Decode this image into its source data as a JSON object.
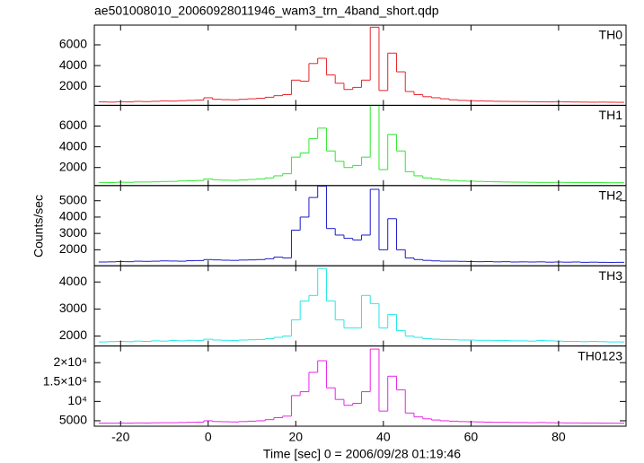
{
  "title": "ae501008010_20060928011946_wam3_trn_4band_short.qdp",
  "ylabel": "Counts/sec",
  "xlabel": "Time [sec] 0 = 2006/09/28 01:19:46",
  "chart_data": [
    {
      "type": "line",
      "label": "TH0",
      "color": "#e8242a",
      "x": [
        -24,
        -22,
        -20,
        -18,
        -16,
        -14,
        -12,
        -10,
        -8,
        -6,
        -4,
        -2,
        0,
        2,
        4,
        6,
        8,
        10,
        12,
        14,
        16,
        18,
        20,
        22,
        24,
        26,
        28,
        30,
        32,
        34,
        36,
        38,
        40,
        42,
        44,
        46,
        48,
        50,
        52,
        54,
        56,
        58,
        60,
        62,
        64,
        66,
        68,
        70,
        72,
        74,
        76,
        78,
        80,
        82,
        84,
        86,
        88,
        90,
        92,
        94
      ],
      "values": [
        500,
        480,
        520,
        500,
        550,
        530,
        560,
        600,
        580,
        620,
        650,
        680,
        900,
        750,
        720,
        700,
        750,
        800,
        850,
        950,
        1100,
        1200,
        2600,
        2500,
        4200,
        4700,
        3100,
        2300,
        1700,
        1900,
        2600,
        7700,
        1600,
        5200,
        3400,
        1500,
        1200,
        1000,
        900,
        800,
        700,
        650,
        620,
        600,
        580,
        560,
        550,
        540,
        530,
        520,
        510,
        500,
        520,
        500,
        490,
        480,
        470,
        480,
        470,
        460
      ],
      "xlim": [
        -26,
        95.4
      ],
      "xticks": [
        -20,
        0,
        20,
        40,
        60,
        80
      ],
      "ylim": [
        170,
        7900
      ],
      "yticks": [
        2000,
        4000,
        6000
      ]
    },
    {
      "type": "line",
      "label": "TH1",
      "color": "#2ee82e",
      "x": [
        -24,
        -22,
        -20,
        -18,
        -16,
        -14,
        -12,
        -10,
        -8,
        -6,
        -4,
        -2,
        0,
        2,
        4,
        6,
        8,
        10,
        12,
        14,
        16,
        18,
        20,
        22,
        24,
        26,
        28,
        30,
        32,
        34,
        36,
        38,
        40,
        42,
        44,
        46,
        48,
        50,
        52,
        54,
        56,
        58,
        60,
        62,
        64,
        66,
        68,
        70,
        72,
        74,
        76,
        78,
        80,
        82,
        84,
        86,
        88,
        90,
        92,
        94
      ],
      "values": [
        560,
        550,
        580,
        570,
        600,
        600,
        620,
        650,
        660,
        700,
        720,
        750,
        900,
        820,
        780,
        760,
        800,
        850,
        900,
        1000,
        1200,
        1400,
        3000,
        3400,
        4800,
        5800,
        3600,
        2600,
        2000,
        2200,
        3000,
        8000,
        1800,
        5200,
        3600,
        1600,
        1200,
        1000,
        900,
        800,
        750,
        700,
        680,
        660,
        640,
        620,
        600,
        590,
        580,
        570,
        560,
        560,
        570,
        560,
        550,
        540,
        550,
        540,
        530,
        530
      ],
      "xlim": [
        -26,
        95.4
      ],
      "xticks": [
        -20,
        0,
        20,
        40,
        60,
        80
      ],
      "ylim": [
        260,
        8000
      ],
      "yticks": [
        2000,
        4000,
        6000
      ]
    },
    {
      "type": "line",
      "label": "TH2",
      "color": "#1c1cc8",
      "x": [
        -24,
        -22,
        -20,
        -18,
        -16,
        -14,
        -12,
        -10,
        -8,
        -6,
        -4,
        -2,
        0,
        2,
        4,
        6,
        8,
        10,
        12,
        14,
        16,
        18,
        20,
        22,
        24,
        26,
        28,
        30,
        32,
        34,
        36,
        38,
        40,
        42,
        44,
        46,
        48,
        50,
        52,
        54,
        56,
        58,
        60,
        62,
        64,
        66,
        68,
        70,
        72,
        74,
        76,
        78,
        80,
        82,
        84,
        86,
        88,
        90,
        92,
        94
      ],
      "values": [
        1250,
        1260,
        1280,
        1270,
        1300,
        1290,
        1300,
        1320,
        1310,
        1300,
        1330,
        1340,
        1400,
        1380,
        1360,
        1350,
        1370,
        1380,
        1400,
        1450,
        1550,
        1500,
        3200,
        4000,
        5200,
        5900,
        3300,
        2900,
        2700,
        2600,
        2900,
        5700,
        2000,
        3900,
        2000,
        1500,
        1400,
        1350,
        1320,
        1300,
        1300,
        1290,
        1280,
        1270,
        1280,
        1260,
        1270,
        1250,
        1260,
        1250,
        1260,
        1240,
        1250,
        1240,
        1250,
        1230,
        1240,
        1230,
        1220,
        1230
      ],
      "xlim": [
        -26,
        95.4
      ],
      "xticks": [
        -20,
        0,
        20,
        40,
        60,
        80
      ],
      "ylim": [
        1020,
        5930
      ],
      "yticks": [
        2000,
        3000,
        4000,
        5000
      ]
    },
    {
      "type": "line",
      "label": "TH3",
      "color": "#22e8e8",
      "x": [
        -24,
        -22,
        -20,
        -18,
        -16,
        -14,
        -12,
        -10,
        -8,
        -6,
        -4,
        -2,
        0,
        2,
        4,
        6,
        8,
        10,
        12,
        14,
        16,
        18,
        20,
        22,
        24,
        26,
        28,
        30,
        32,
        34,
        36,
        38,
        40,
        42,
        44,
        46,
        48,
        50,
        52,
        54,
        56,
        58,
        60,
        62,
        64,
        66,
        68,
        70,
        72,
        74,
        76,
        78,
        80,
        82,
        84,
        86,
        88,
        90,
        92,
        94
      ],
      "values": [
        1780,
        1790,
        1800,
        1790,
        1810,
        1800,
        1820,
        1810,
        1830,
        1820,
        1840,
        1830,
        1880,
        1850,
        1840,
        1830,
        1850,
        1860,
        1870,
        1900,
        1950,
        2000,
        2600,
        3300,
        3500,
        4500,
        3300,
        2600,
        2300,
        2300,
        3500,
        3200,
        2300,
        2800,
        2200,
        2000,
        1950,
        1900,
        1880,
        1870,
        1860,
        1850,
        1850,
        1840,
        1840,
        1830,
        1830,
        1820,
        1820,
        1810,
        1830,
        1820,
        1810,
        1800,
        1800,
        1790,
        1800,
        1790,
        1780,
        1780
      ],
      "xlim": [
        -26,
        95.4
      ],
      "xticks": [
        -20,
        0,
        20,
        40,
        60,
        80
      ],
      "ylim": [
        1630,
        4600
      ],
      "yticks": [
        2000,
        3000,
        4000
      ]
    },
    {
      "type": "line",
      "label": "TH0123",
      "color": "#e824e8",
      "x": [
        -24,
        -22,
        -20,
        -18,
        -16,
        -14,
        -12,
        -10,
        -8,
        -6,
        -4,
        -2,
        0,
        2,
        4,
        6,
        8,
        10,
        12,
        14,
        16,
        18,
        20,
        22,
        24,
        26,
        28,
        30,
        32,
        34,
        36,
        38,
        40,
        42,
        44,
        46,
        48,
        50,
        52,
        54,
        56,
        58,
        60,
        62,
        64,
        66,
        68,
        70,
        72,
        74,
        76,
        78,
        80,
        82,
        84,
        86,
        88,
        90,
        92,
        94
      ],
      "values": [
        4400,
        4380,
        4420,
        4400,
        4450,
        4430,
        4480,
        4500,
        4500,
        4550,
        4600,
        4650,
        5000,
        4800,
        4750,
        4700,
        4800,
        4900,
        5000,
        5300,
        5800,
        6200,
        11500,
        12500,
        17500,
        20500,
        13500,
        10500,
        9000,
        9500,
        12500,
        23500,
        7500,
        16500,
        13000,
        7000,
        6000,
        5500,
        5200,
        5000,
        4900,
        4800,
        4750,
        4700,
        4650,
        4600,
        4600,
        4550,
        4550,
        4500,
        4550,
        4500,
        4480,
        4450,
        4450,
        4420,
        4430,
        4400,
        4380,
        4380
      ],
      "xlim": [
        -26,
        95.4
      ],
      "xticks": [
        -20,
        0,
        20,
        40,
        60,
        80
      ],
      "ylim": [
        3600,
        24300
      ],
      "yticks": [
        5000,
        {
          "value": 10000,
          "label": "10⁴"
        },
        {
          "value": 15000,
          "label": "1.5×10⁴"
        },
        {
          "value": 20000,
          "label": "2×10⁴"
        }
      ]
    }
  ]
}
